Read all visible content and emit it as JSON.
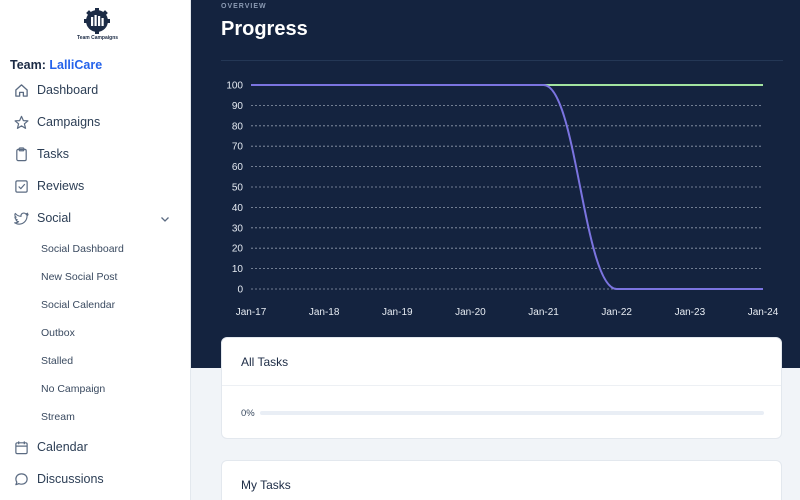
{
  "sidebar": {
    "logo_text": "Team Campaigns",
    "team_label": "Team:",
    "team_name": "LalliCare",
    "items": [
      {
        "label": "Dashboard",
        "icon": "home-icon"
      },
      {
        "label": "Campaigns",
        "icon": "star-icon"
      },
      {
        "label": "Tasks",
        "icon": "clipboard-icon"
      },
      {
        "label": "Reviews",
        "icon": "checkbox-icon"
      },
      {
        "label": "Social",
        "icon": "twitter-icon"
      },
      {
        "label": "Calendar",
        "icon": "calendar-icon"
      },
      {
        "label": "Discussions",
        "icon": "chat-icon"
      }
    ],
    "social_sub": [
      "Social Dashboard",
      "New Social Post",
      "Social Calendar",
      "Outbox",
      "Stalled",
      "No Campaign",
      "Stream"
    ]
  },
  "header": {
    "overview": "OVERVIEW",
    "title": "Progress"
  },
  "chart_data": {
    "type": "line",
    "x": [
      "Jan-17",
      "Jan-18",
      "Jan-19",
      "Jan-20",
      "Jan-21",
      "Jan-22",
      "Jan-23",
      "Jan-24"
    ],
    "y_ticks": [
      0,
      10,
      20,
      30,
      40,
      50,
      60,
      70,
      80,
      90,
      100
    ],
    "ylim": [
      0,
      100
    ],
    "grid": true,
    "series": [
      {
        "color": "#a3e4a0",
        "points": [
          [
            "Jan-17",
            100
          ],
          [
            "Jan-21",
            100
          ],
          [
            "Jan-22",
            100
          ],
          [
            "Jan-24",
            100
          ]
        ]
      },
      {
        "color": "#7b74e0",
        "points": [
          [
            "Jan-17",
            100
          ],
          [
            "Jan-21",
            100
          ],
          [
            "Jan-21.5",
            50
          ],
          [
            "Jan-22",
            0
          ],
          [
            "Jan-24",
            0
          ]
        ]
      }
    ]
  },
  "cards": {
    "all_tasks": {
      "title": "All Tasks",
      "percent_text": "0%",
      "progress": 0
    },
    "my_tasks": {
      "title": "My Tasks"
    }
  },
  "colors": {
    "header_bg": "#14233f",
    "accent": "#2563eb"
  }
}
